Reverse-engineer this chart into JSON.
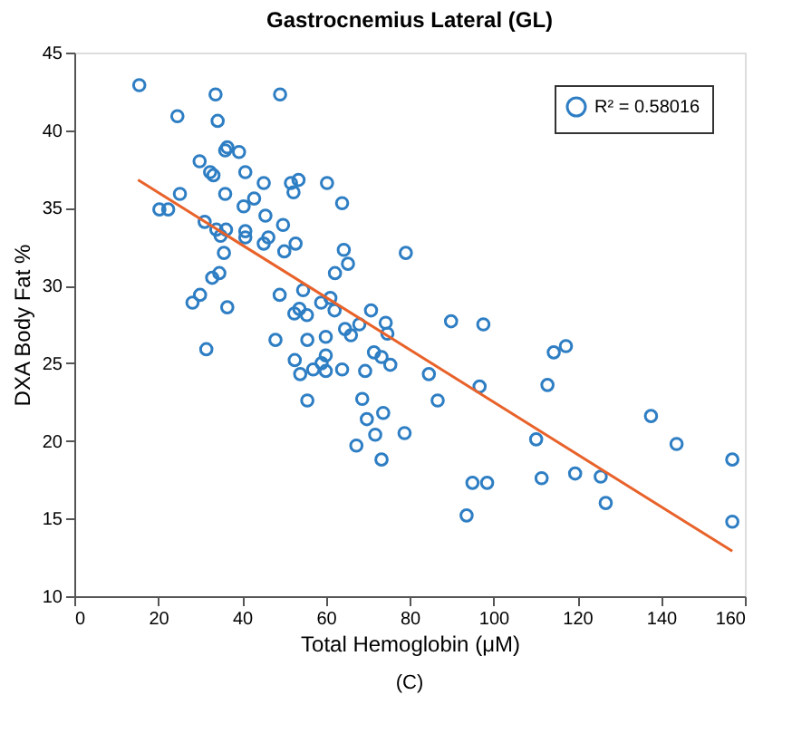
{
  "chart_data": {
    "type": "scatter",
    "title": "Gastrocnemius Lateral (GL)",
    "xlabel": "Total Hemoglobin (μM)",
    "ylabel": "DXA Body Fat %",
    "annotations": [
      "(C)"
    ],
    "xlim": [
      0,
      160
    ],
    "ylim": [
      10,
      45
    ],
    "xticks": [
      0,
      20,
      40,
      60,
      80,
      100,
      120,
      140,
      160
    ],
    "yticks": [
      10,
      15,
      20,
      25,
      30,
      35,
      40,
      45
    ],
    "legend": "top right",
    "marker": "circle",
    "series": [
      {
        "name": "R² = 0.58016",
        "color": "#2e7ec4",
        "x": [
          15.5,
          33.7,
          49.1,
          24.6,
          34.2,
          36.5,
          36,
          39.3,
          29.9,
          32.4,
          33.2,
          40.8,
          45.2,
          51.7,
          53.5,
          52.3,
          60.3,
          25.2,
          36,
          42.9,
          63.9,
          20.3,
          22.4,
          40.4,
          45.6,
          31.1,
          49.8,
          33.9,
          36.2,
          40.8,
          34.9,
          40.8,
          46.3,
          45.2,
          52.8,
          50.1,
          64.3,
          79.1,
          35.7,
          65.3,
          62.2,
          34.6,
          32.9,
          54.6,
          30,
          28.2,
          49,
          61.1,
          36.5,
          53.7,
          58.9,
          70.8,
          55.5,
          52.5,
          62.1,
          74.3,
          74.7,
          64.6,
          66,
          68,
          48,
          55.6,
          60,
          31.5,
          71.5,
          73.3,
          75.4,
          52.6,
          53.9,
          57,
          59,
          60,
          60,
          63.9,
          69.4,
          68.7,
          55.6,
          69.8,
          73.7,
          71.8,
          78.8,
          67.3,
          73.3,
          89.9,
          97.6,
          114.4,
          117.3,
          84.6,
          96.7,
          112.9,
          86.7,
          137.6,
          143.7,
          110.2,
          157,
          95,
          98.5,
          111.5,
          119.5,
          125.6,
          126.8,
          93.6,
          157
        ],
        "values": [
          42.9,
          42.3,
          42.3,
          40.9,
          40.6,
          38.9,
          38.7,
          38.6,
          38,
          37.3,
          37.1,
          37.3,
          36.6,
          36.6,
          36.8,
          36,
          36.6,
          35.9,
          35.9,
          35.6,
          35.3,
          34.9,
          34.9,
          35.1,
          34.5,
          34.1,
          33.9,
          33.6,
          33.6,
          33.5,
          33.2,
          33.1,
          33.1,
          32.7,
          32.7,
          32.2,
          32.3,
          32.1,
          32.1,
          31.4,
          30.8,
          30.8,
          30.5,
          29.7,
          29.4,
          28.9,
          29.4,
          29.2,
          28.6,
          28.5,
          28.9,
          28.4,
          28.1,
          28.2,
          28.4,
          27.6,
          26.9,
          27.2,
          26.8,
          27.5,
          26.5,
          26.5,
          26.7,
          25.9,
          25.7,
          25.4,
          24.9,
          25.2,
          24.3,
          24.6,
          25,
          25.5,
          24.5,
          24.6,
          24.5,
          22.7,
          22.6,
          21.4,
          21.8,
          20.4,
          20.5,
          19.7,
          18.8,
          27.7,
          27.5,
          25.7,
          26.1,
          24.3,
          23.5,
          23.6,
          22.6,
          21.6,
          19.8,
          20.1,
          18.8,
          17.3,
          17.3,
          17.6,
          17.9,
          17.7,
          16,
          15.2,
          14.8
        ]
      },
      {
        "type": "line",
        "marker": "none",
        "color": "#e8622a",
        "x": [
          15.2,
          157
        ],
        "values": [
          36.8,
          12.9
        ]
      }
    ]
  }
}
